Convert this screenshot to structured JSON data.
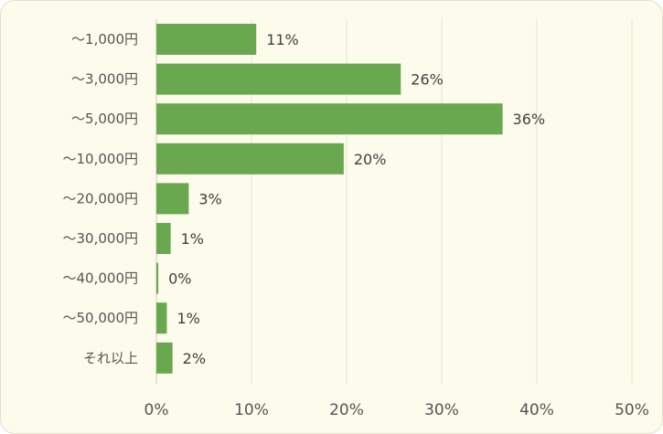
{
  "chart_data": {
    "type": "bar",
    "orientation": "horizontal",
    "categories": [
      "～1,000円",
      "～3,000円",
      "～5,000円",
      "～10,000円",
      "～20,000円",
      "～30,000円",
      "～40,000円",
      "～50,000円",
      "それ以上"
    ],
    "values": [
      10.5,
      25.7,
      36.4,
      19.7,
      3.4,
      1.5,
      0.2,
      1.1,
      1.7
    ],
    "value_labels": [
      "11%",
      "26%",
      "36%",
      "20%",
      "3%",
      "1%",
      "0%",
      "1%",
      "2%"
    ],
    "xlim": [
      0,
      50
    ],
    "x_ticks": [
      "0%",
      "10%",
      "20%",
      "30%",
      "40%",
      "50%"
    ],
    "title": "",
    "xlabel": "",
    "ylabel": "",
    "grid": "vertical",
    "legend": "none",
    "bar_color": "#6aa84f",
    "background_color": "#fdfbeb"
  }
}
